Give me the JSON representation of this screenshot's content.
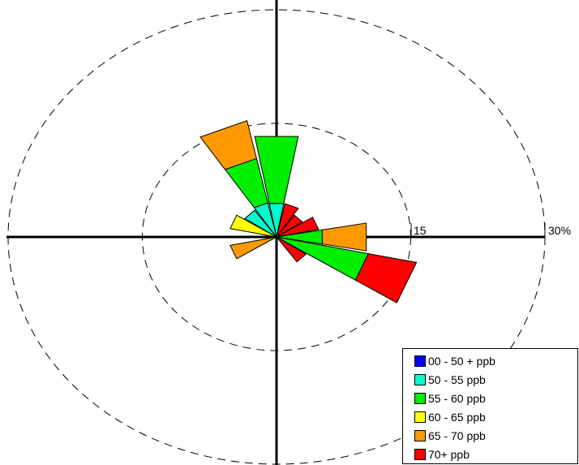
{
  "chart_data": {
    "type": "wind-rose",
    "title": "",
    "ring_labels": [
      "15",
      "30%"
    ],
    "rings": [
      15,
      30
    ],
    "sector_width_deg": 22.5,
    "legend": {
      "placement": "bottom-right",
      "entries": [
        {
          "label": "00 - 50 + ppb",
          "color": "#0000ff"
        },
        {
          "label": "50 - 55 ppb",
          "color": "#00ffcc"
        },
        {
          "label": "55 - 60 ppb",
          "color": "#00ee00"
        },
        {
          "label": "60 - 65 ppb",
          "color": "#ffff00"
        },
        {
          "label": "65 - 70 ppb",
          "color": "#ff9900"
        },
        {
          "label": "70+ ppb",
          "color": "#ff0000"
        }
      ]
    },
    "sectors": [
      {
        "direction": "N",
        "angle": 0,
        "bands": [
          0,
          4.5,
          9.0,
          0,
          0,
          0
        ]
      },
      {
        "direction": "NNE",
        "angle": 22.5,
        "bands": [
          0,
          0,
          0,
          0,
          0,
          4.5
        ]
      },
      {
        "direction": "NE",
        "angle": 45,
        "bands": [
          0,
          0,
          0,
          0,
          0,
          3.5
        ]
      },
      {
        "direction": "ENE",
        "angle": 67.5,
        "bands": [
          0,
          0,
          0,
          0,
          0,
          4.8
        ]
      },
      {
        "direction": "E",
        "angle": 90,
        "bands": [
          0,
          0,
          5.2,
          0,
          5.0,
          0
        ]
      },
      {
        "direction": "ESE",
        "angle": 112.5,
        "bands": [
          0,
          0,
          10.5,
          0,
          0,
          5.5
        ]
      },
      {
        "direction": "SE",
        "angle": 135,
        "bands": [
          0,
          0,
          0,
          0,
          0,
          4.0
        ]
      },
      {
        "direction": "WSW",
        "angle": 247.5,
        "bands": [
          0,
          0,
          0,
          0,
          5.3,
          0
        ]
      },
      {
        "direction": "WNW",
        "angle": 292.5,
        "bands": [
          0,
          0,
          0,
          5.3,
          0,
          0
        ]
      },
      {
        "direction": "NW",
        "angle": 315,
        "bands": [
          0,
          4.3,
          0,
          0,
          0,
          0
        ]
      },
      {
        "direction": "NNW",
        "angle": 337.5,
        "bands": [
          0,
          4.6,
          6.0,
          0,
          5.1,
          0
        ]
      }
    ]
  }
}
